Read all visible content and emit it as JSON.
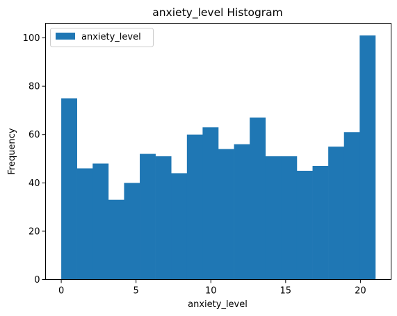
{
  "chart_data": {
    "type": "bar",
    "title": "anxiety_level Histogram",
    "xlabel": "anxiety_level",
    "ylabel": "Frequency",
    "bin_start": 0,
    "bin_width": 1.05,
    "values": [
      75,
      46,
      48,
      33,
      40,
      52,
      51,
      44,
      60,
      63,
      54,
      56,
      67,
      51,
      51,
      45,
      47,
      55,
      61,
      101
    ],
    "xlim": [
      -1.05,
      22.05
    ],
    "ylim": [
      0,
      106.05
    ],
    "x_ticks": [
      0,
      5,
      10,
      15,
      20
    ],
    "y_ticks": [
      0,
      20,
      40,
      60,
      80,
      100
    ],
    "series": [
      {
        "name": "anxiety_level",
        "color": "#1f77b4"
      }
    ],
    "legend_position": "top-left",
    "grid": false
  }
}
